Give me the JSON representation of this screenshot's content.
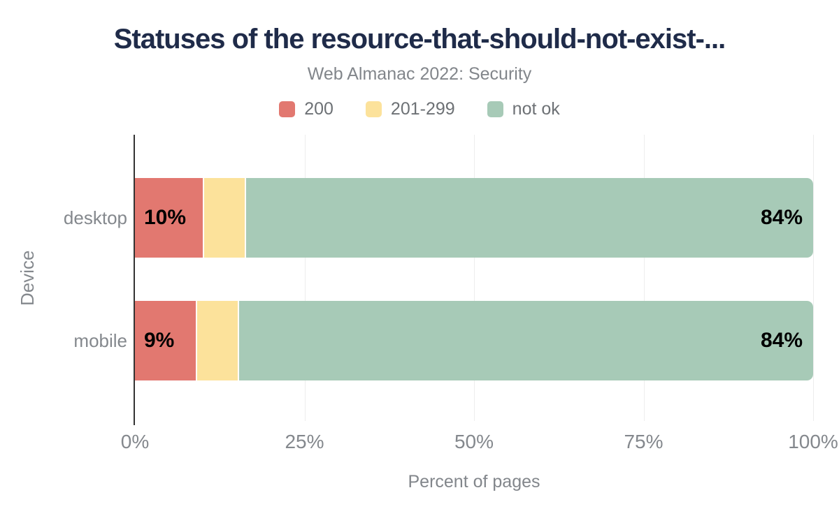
{
  "title": "Statuses of the resource-that-should-not-exist-...",
  "subtitle": "Web Almanac 2022: Security",
  "legend": [
    {
      "label": "200",
      "color": "#e27870"
    },
    {
      "label": "201-299",
      "color": "#fce29b"
    },
    {
      "label": "not ok",
      "color": "#a7cab7"
    }
  ],
  "y_axis": {
    "label": "Device",
    "categories": [
      "desktop",
      "mobile"
    ]
  },
  "x_axis": {
    "label": "Percent of pages",
    "ticks": [
      "0%",
      "25%",
      "50%",
      "75%",
      "100%"
    ]
  },
  "chart_data": {
    "type": "bar",
    "orientation": "horizontal",
    "stacked": true,
    "title": "Statuses of the resource-that-should-not-exist-...",
    "subtitle": "Web Almanac 2022: Security",
    "categories": [
      "desktop",
      "mobile"
    ],
    "series": [
      {
        "name": "200",
        "color": "#e27870",
        "values": [
          10,
          9
        ]
      },
      {
        "name": "201-299",
        "color": "#fce29b",
        "values": [
          6,
          6
        ]
      },
      {
        "name": "not ok",
        "color": "#a7cab7",
        "values": [
          84,
          84
        ]
      }
    ],
    "bar_labels": [
      [
        "10%",
        "",
        "84%"
      ],
      [
        "9%",
        "",
        "84%"
      ]
    ],
    "xlabel": "Percent of pages",
    "ylabel": "Device",
    "xlim": [
      0,
      100
    ],
    "xticks": [
      "0%",
      "25%",
      "50%",
      "75%",
      "100%"
    ],
    "grid": "vertical",
    "legend_position": "top"
  },
  "colors": {
    "title": "#1f2b49",
    "subtitle": "#82868b",
    "axis_text": "#84888d",
    "grid": "#ededed",
    "axis_line": "#333333",
    "bar_label_text": "#000000"
  }
}
